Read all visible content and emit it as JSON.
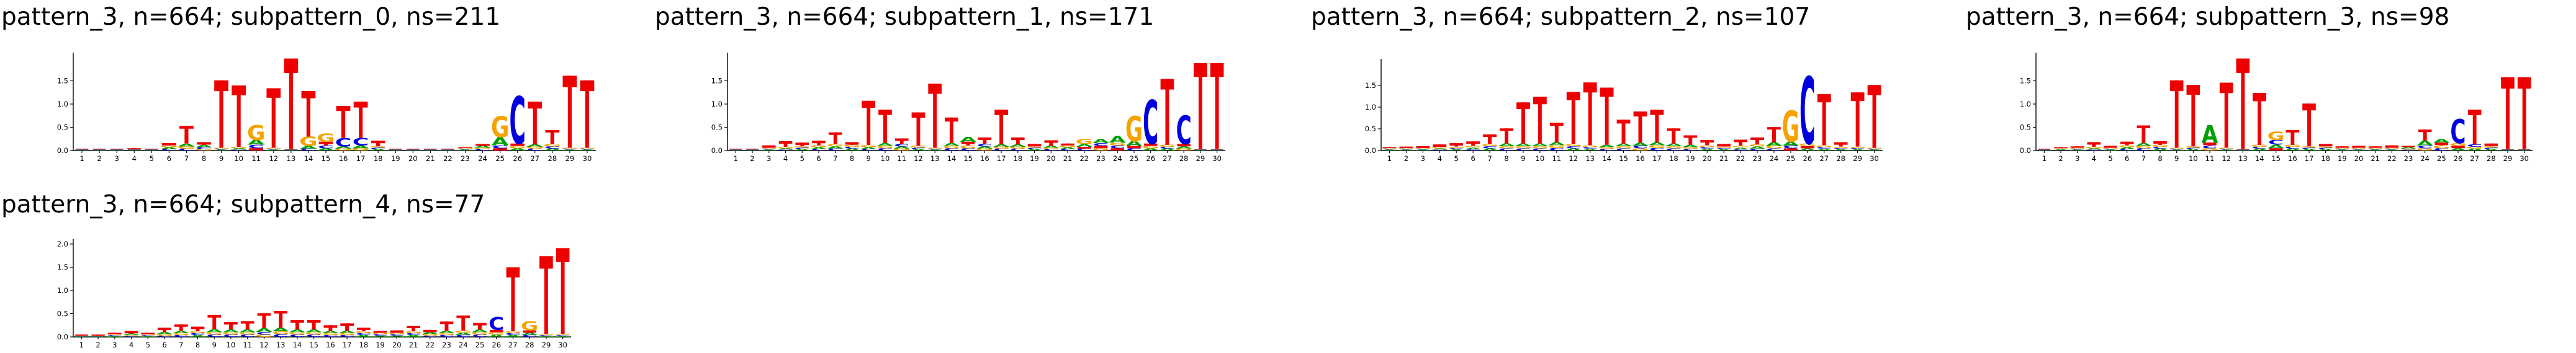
{
  "figure": {
    "background": "#ffffff"
  },
  "letter_colors": {
    "A": "#00a000",
    "C": "#0000dd",
    "G": "#f5a300",
    "T": "#ee0000"
  },
  "chart_data": [
    {
      "type": "logo",
      "title": "pattern_3, n=664; subpattern_0, ns=211",
      "xlabel": "",
      "ylabel": "",
      "ylim": [
        0,
        2.0
      ],
      "yticks": [
        "0.0",
        "0.5",
        "1.0",
        "1.5"
      ],
      "positions": [
        "1",
        "2",
        "3",
        "4",
        "5",
        "6",
        "7",
        "8",
        "9",
        "10",
        "11",
        "12",
        "13",
        "14",
        "15",
        "16",
        "17",
        "18",
        "19",
        "20",
        "21",
        "22",
        "23",
        "24",
        "25",
        "26",
        "27",
        "28",
        "29",
        "30"
      ],
      "letters": [
        {
          "A": 0.01,
          "C": 0.01,
          "G": 0.01,
          "T": 0.01
        },
        {
          "A": 0.01,
          "C": 0.01,
          "G": 0.01,
          "T": 0.01
        },
        {
          "A": 0.01,
          "C": 0.01,
          "G": 0.01,
          "T": 0.01
        },
        {
          "A": 0.01,
          "C": 0.01,
          "G": 0.01,
          "T": 0.02
        },
        {
          "A": 0.01,
          "C": 0.01,
          "G": 0.01,
          "T": 0.01
        },
        {
          "A": 0.04,
          "C": 0.03,
          "G": 0.04,
          "T": 0.05
        },
        {
          "A": 0.06,
          "C": 0.04,
          "G": 0.05,
          "T": 0.38
        },
        {
          "A": 0.05,
          "C": 0.04,
          "G": 0.03,
          "T": 0.06
        },
        {
          "A": 0.02,
          "C": 0.02,
          "G": 0.02,
          "T": 1.45
        },
        {
          "A": 0.03,
          "C": 0.02,
          "G": 0.03,
          "T": 1.32
        },
        {
          "A": 0.1,
          "C": 0.08,
          "G": 0.32,
          "T": 0.05
        },
        {
          "A": 0.02,
          "C": 0.02,
          "G": 0.02,
          "T": 1.28
        },
        {
          "A": 0.01,
          "C": 0.01,
          "G": 0.01,
          "T": 1.95
        },
        {
          "A": 0.06,
          "C": 0.04,
          "G": 0.2,
          "T": 0.98
        },
        {
          "A": 0.05,
          "C": 0.06,
          "G": 0.18,
          "T": 0.08
        },
        {
          "A": 0.05,
          "C": 0.18,
          "G": 0.04,
          "T": 0.69
        },
        {
          "A": 0.06,
          "C": 0.16,
          "G": 0.05,
          "T": 0.78
        },
        {
          "A": 0.03,
          "C": 0.03,
          "G": 0.03,
          "T": 0.12
        },
        {
          "A": 0.01,
          "C": 0.01,
          "G": 0.01,
          "T": 0.01
        },
        {
          "A": 0.01,
          "C": 0.01,
          "G": 0.01,
          "T": 0.01
        },
        {
          "A": 0.01,
          "C": 0.01,
          "G": 0.01,
          "T": 0.01
        },
        {
          "A": 0.01,
          "C": 0.01,
          "G": 0.01,
          "T": 0.01
        },
        {
          "A": 0.02,
          "C": 0.02,
          "G": 0.02,
          "T": 0.02
        },
        {
          "A": 0.04,
          "C": 0.03,
          "G": 0.03,
          "T": 0.04
        },
        {
          "A": 0.18,
          "C": 0.06,
          "G": 0.45,
          "T": 0.05
        },
        {
          "A": 0.05,
          "C": 1.02,
          "G": 0.05,
          "T": 0.05
        },
        {
          "A": 0.05,
          "C": 0.04,
          "G": 0.04,
          "T": 0.92
        },
        {
          "A": 0.04,
          "C": 0.05,
          "G": 0.05,
          "T": 0.3
        },
        {
          "A": 0.02,
          "C": 0.02,
          "G": 0.02,
          "T": 1.55
        },
        {
          "A": 0.02,
          "C": 0.02,
          "G": 0.02,
          "T": 1.45
        }
      ]
    },
    {
      "type": "logo",
      "title": "pattern_3, n=664; subpattern_1, ns=171",
      "xlabel": "",
      "ylabel": "",
      "ylim": [
        0,
        2.0
      ],
      "yticks": [
        "0.0",
        "0.5",
        "1.0",
        "1.5"
      ],
      "positions": [
        "1",
        "2",
        "3",
        "4",
        "5",
        "6",
        "7",
        "8",
        "9",
        "10",
        "11",
        "12",
        "13",
        "14",
        "15",
        "16",
        "17",
        "18",
        "19",
        "20",
        "21",
        "22",
        "23",
        "24",
        "25",
        "26",
        "27",
        "28",
        "29",
        "30"
      ],
      "letters": [
        {
          "A": 0.01,
          "C": 0.01,
          "G": 0.01,
          "T": 0.01
        },
        {
          "A": 0.01,
          "C": 0.01,
          "G": 0.01,
          "T": 0.01
        },
        {
          "A": 0.02,
          "C": 0.02,
          "G": 0.02,
          "T": 0.05
        },
        {
          "A": 0.03,
          "C": 0.02,
          "G": 0.03,
          "T": 0.12
        },
        {
          "A": 0.03,
          "C": 0.03,
          "G": 0.03,
          "T": 0.08
        },
        {
          "A": 0.04,
          "C": 0.03,
          "G": 0.04,
          "T": 0.1
        },
        {
          "A": 0.05,
          "C": 0.04,
          "G": 0.05,
          "T": 0.25
        },
        {
          "A": 0.04,
          "C": 0.04,
          "G": 0.04,
          "T": 0.06
        },
        {
          "A": 0.04,
          "C": 0.03,
          "G": 0.05,
          "T": 0.95
        },
        {
          "A": 0.06,
          "C": 0.05,
          "G": 0.05,
          "T": 0.72
        },
        {
          "A": 0.05,
          "C": 0.05,
          "G": 0.04,
          "T": 0.12
        },
        {
          "A": 0.03,
          "C": 0.03,
          "G": 0.04,
          "T": 0.72
        },
        {
          "A": 0.02,
          "C": 0.02,
          "G": 0.02,
          "T": 1.38
        },
        {
          "A": 0.06,
          "C": 0.05,
          "G": 0.05,
          "T": 0.55
        },
        {
          "A": 0.1,
          "C": 0.05,
          "G": 0.06,
          "T": 0.08
        },
        {
          "A": 0.05,
          "C": 0.05,
          "G": 0.04,
          "T": 0.14
        },
        {
          "A": 0.05,
          "C": 0.04,
          "G": 0.04,
          "T": 0.75
        },
        {
          "A": 0.05,
          "C": 0.04,
          "G": 0.04,
          "T": 0.15
        },
        {
          "A": 0.03,
          "C": 0.03,
          "G": 0.03,
          "T": 0.05
        },
        {
          "A": 0.04,
          "C": 0.03,
          "G": 0.03,
          "T": 0.12
        },
        {
          "A": 0.04,
          "C": 0.03,
          "G": 0.04,
          "T": 0.04
        },
        {
          "A": 0.06,
          "C": 0.04,
          "G": 0.1,
          "T": 0.04
        },
        {
          "A": 0.09,
          "C": 0.06,
          "G": 0.05,
          "T": 0.05
        },
        {
          "A": 0.15,
          "C": 0.06,
          "G": 0.06,
          "T": 0.05
        },
        {
          "A": 0.1,
          "C": 0.05,
          "G": 0.55,
          "T": 0.05
        },
        {
          "A": 0.05,
          "C": 0.95,
          "G": 0.05,
          "T": 0.05
        },
        {
          "A": 0.04,
          "C": 0.04,
          "G": 0.04,
          "T": 1.42
        },
        {
          "A": 0.05,
          "C": 0.62,
          "G": 0.04,
          "T": 0.05
        },
        {
          "A": 0.01,
          "C": 0.01,
          "G": 0.01,
          "T": 1.85
        },
        {
          "A": 0.01,
          "C": 0.01,
          "G": 0.01,
          "T": 1.85
        }
      ]
    },
    {
      "type": "logo",
      "title": "pattern_3, n=664; subpattern_2, ns=107",
      "xlabel": "",
      "ylabel": "",
      "ylim": [
        0,
        2.0
      ],
      "yticks": [
        "0.0",
        "0.5",
        "1.0",
        "1.5"
      ],
      "positions": [
        "1",
        "2",
        "3",
        "4",
        "5",
        "6",
        "7",
        "8",
        "9",
        "10",
        "11",
        "12",
        "13",
        "14",
        "15",
        "16",
        "17",
        "18",
        "19",
        "20",
        "21",
        "22",
        "23",
        "24",
        "25",
        "26",
        "27",
        "28",
        "29",
        "30"
      ],
      "letters": [
        {
          "A": 0.02,
          "C": 0.02,
          "G": 0.02,
          "T": 0.02
        },
        {
          "A": 0.02,
          "C": 0.02,
          "G": 0.02,
          "T": 0.03
        },
        {
          "A": 0.02,
          "C": 0.02,
          "G": 0.02,
          "T": 0.04
        },
        {
          "A": 0.03,
          "C": 0.02,
          "G": 0.03,
          "T": 0.06
        },
        {
          "A": 0.03,
          "C": 0.03,
          "G": 0.03,
          "T": 0.08
        },
        {
          "A": 0.04,
          "C": 0.03,
          "G": 0.04,
          "T": 0.1
        },
        {
          "A": 0.05,
          "C": 0.05,
          "G": 0.05,
          "T": 0.22
        },
        {
          "A": 0.06,
          "C": 0.05,
          "G": 0.05,
          "T": 0.35
        },
        {
          "A": 0.06,
          "C": 0.05,
          "G": 0.05,
          "T": 0.95
        },
        {
          "A": 0.06,
          "C": 0.05,
          "G": 0.05,
          "T": 1.08
        },
        {
          "A": 0.07,
          "C": 0.06,
          "G": 0.06,
          "T": 0.45
        },
        {
          "A": 0.05,
          "C": 0.05,
          "G": 0.05,
          "T": 1.2
        },
        {
          "A": 0.04,
          "C": 0.04,
          "G": 0.04,
          "T": 1.45
        },
        {
          "A": 0.05,
          "C": 0.04,
          "G": 0.04,
          "T": 1.32
        },
        {
          "A": 0.06,
          "C": 0.05,
          "G": 0.05,
          "T": 0.55
        },
        {
          "A": 0.07,
          "C": 0.06,
          "G": 0.05,
          "T": 0.72
        },
        {
          "A": 0.07,
          "C": 0.06,
          "G": 0.06,
          "T": 0.75
        },
        {
          "A": 0.06,
          "C": 0.05,
          "G": 0.05,
          "T": 0.35
        },
        {
          "A": 0.05,
          "C": 0.04,
          "G": 0.04,
          "T": 0.22
        },
        {
          "A": 0.04,
          "C": 0.04,
          "G": 0.04,
          "T": 0.12
        },
        {
          "A": 0.03,
          "C": 0.03,
          "G": 0.03,
          "T": 0.06
        },
        {
          "A": 0.04,
          "C": 0.03,
          "G": 0.04,
          "T": 0.14
        },
        {
          "A": 0.05,
          "C": 0.04,
          "G": 0.05,
          "T": 0.16
        },
        {
          "A": 0.08,
          "C": 0.05,
          "G": 0.06,
          "T": 0.35
        },
        {
          "A": 0.1,
          "C": 0.06,
          "G": 0.72,
          "T": 0.05
        },
        {
          "A": 0.05,
          "C": 1.55,
          "G": 0.06,
          "T": 0.05
        },
        {
          "A": 0.04,
          "C": 0.04,
          "G": 0.04,
          "T": 1.18
        },
        {
          "A": 0.03,
          "C": 0.03,
          "G": 0.03,
          "T": 0.1
        },
        {
          "A": 0.03,
          "C": 0.03,
          "G": 0.03,
          "T": 1.25
        },
        {
          "A": 0.02,
          "C": 0.02,
          "G": 0.02,
          "T": 1.45
        }
      ]
    },
    {
      "type": "logo",
      "title": "pattern_3, n=664; subpattern_3, ns=98",
      "xlabel": "",
      "ylabel": "",
      "ylim": [
        0,
        2.0
      ],
      "yticks": [
        "0.0",
        "0.5",
        "1.0",
        "1.5"
      ],
      "positions": [
        "1",
        "2",
        "3",
        "4",
        "5",
        "6",
        "7",
        "8",
        "9",
        "10",
        "11",
        "12",
        "13",
        "14",
        "15",
        "16",
        "17",
        "18",
        "19",
        "20",
        "21",
        "22",
        "23",
        "24",
        "25",
        "26",
        "27",
        "28",
        "29",
        "30"
      ],
      "letters": [
        {
          "A": 0.01,
          "C": 0.01,
          "G": 0.01,
          "T": 0.01
        },
        {
          "A": 0.02,
          "C": 0.01,
          "G": 0.02,
          "T": 0.02
        },
        {
          "A": 0.02,
          "C": 0.02,
          "G": 0.02,
          "T": 0.03
        },
        {
          "A": 0.03,
          "C": 0.02,
          "G": 0.03,
          "T": 0.1
        },
        {
          "A": 0.02,
          "C": 0.02,
          "G": 0.02,
          "T": 0.04
        },
        {
          "A": 0.04,
          "C": 0.03,
          "G": 0.04,
          "T": 0.08
        },
        {
          "A": 0.06,
          "C": 0.05,
          "G": 0.05,
          "T": 0.38
        },
        {
          "A": 0.04,
          "C": 0.04,
          "G": 0.04,
          "T": 0.08
        },
        {
          "A": 0.02,
          "C": 0.02,
          "G": 0.02,
          "T": 1.45
        },
        {
          "A": 0.03,
          "C": 0.03,
          "G": 0.03,
          "T": 1.32
        },
        {
          "A": 0.38,
          "C": 0.06,
          "G": 0.05,
          "T": 0.06
        },
        {
          "A": 0.02,
          "C": 0.02,
          "G": 0.02,
          "T": 1.4
        },
        {
          "A": 0.01,
          "C": 0.01,
          "G": 0.01,
          "T": 1.95
        },
        {
          "A": 0.04,
          "C": 0.04,
          "G": 0.04,
          "T": 1.12
        },
        {
          "A": 0.08,
          "C": 0.1,
          "G": 0.18,
          "T": 0.05
        },
        {
          "A": 0.04,
          "C": 0.04,
          "G": 0.04,
          "T": 0.32
        },
        {
          "A": 0.03,
          "C": 0.03,
          "G": 0.03,
          "T": 0.92
        },
        {
          "A": 0.03,
          "C": 0.03,
          "G": 0.03,
          "T": 0.05
        },
        {
          "A": 0.02,
          "C": 0.02,
          "G": 0.02,
          "T": 0.03
        },
        {
          "A": 0.02,
          "C": 0.02,
          "G": 0.02,
          "T": 0.04
        },
        {
          "A": 0.02,
          "C": 0.02,
          "G": 0.02,
          "T": 0.03
        },
        {
          "A": 0.02,
          "C": 0.02,
          "G": 0.02,
          "T": 0.05
        },
        {
          "A": 0.03,
          "C": 0.02,
          "G": 0.02,
          "T": 0.03
        },
        {
          "A": 0.1,
          "C": 0.06,
          "G": 0.05,
          "T": 0.24
        },
        {
          "A": 0.08,
          "C": 0.05,
          "G": 0.06,
          "T": 0.06
        },
        {
          "A": 0.05,
          "C": 0.52,
          "G": 0.06,
          "T": 0.05
        },
        {
          "A": 0.04,
          "C": 0.05,
          "G": 0.04,
          "T": 0.75
        },
        {
          "A": 0.03,
          "C": 0.03,
          "G": 0.03,
          "T": 0.06
        },
        {
          "A": 0.01,
          "C": 0.01,
          "G": 0.01,
          "T": 1.55
        },
        {
          "A": 0.01,
          "C": 0.01,
          "G": 0.01,
          "T": 1.55
        }
      ]
    },
    {
      "type": "logo",
      "title": "pattern_3, n=664; subpattern_4, ns=77",
      "xlabel": "",
      "ylabel": "",
      "ylim": [
        0,
        2.0
      ],
      "yticks": [
        "0.0",
        "0.5",
        "1.0",
        "1.5",
        "2.0"
      ],
      "positions": [
        "1",
        "2",
        "3",
        "4",
        "5",
        "6",
        "7",
        "8",
        "9",
        "10",
        "11",
        "12",
        "13",
        "14",
        "15",
        "16",
        "17",
        "18",
        "19",
        "20",
        "21",
        "22",
        "23",
        "24",
        "25",
        "26",
        "27",
        "28",
        "29",
        "30"
      ],
      "letters": [
        {
          "A": 0.01,
          "C": 0.01,
          "G": 0.01,
          "T": 0.02
        },
        {
          "A": 0.01,
          "C": 0.01,
          "G": 0.01,
          "T": 0.02
        },
        {
          "A": 0.02,
          "C": 0.02,
          "G": 0.02,
          "T": 0.03
        },
        {
          "A": 0.03,
          "C": 0.02,
          "G": 0.02,
          "T": 0.06
        },
        {
          "A": 0.02,
          "C": 0.02,
          "G": 0.02,
          "T": 0.03
        },
        {
          "A": 0.04,
          "C": 0.03,
          "G": 0.03,
          "T": 0.1
        },
        {
          "A": 0.05,
          "C": 0.04,
          "G": 0.04,
          "T": 0.14
        },
        {
          "A": 0.04,
          "C": 0.04,
          "G": 0.04,
          "T": 0.1
        },
        {
          "A": 0.07,
          "C": 0.05,
          "G": 0.05,
          "T": 0.3
        },
        {
          "A": 0.06,
          "C": 0.05,
          "G": 0.05,
          "T": 0.16
        },
        {
          "A": 0.06,
          "C": 0.05,
          "G": 0.05,
          "T": 0.18
        },
        {
          "A": 0.08,
          "C": 0.06,
          "G": 0.05,
          "T": 0.32
        },
        {
          "A": 0.08,
          "C": 0.06,
          "G": 0.06,
          "T": 0.36
        },
        {
          "A": 0.06,
          "C": 0.05,
          "G": 0.05,
          "T": 0.2
        },
        {
          "A": 0.06,
          "C": 0.05,
          "G": 0.05,
          "T": 0.2
        },
        {
          "A": 0.05,
          "C": 0.04,
          "G": 0.04,
          "T": 0.12
        },
        {
          "A": 0.05,
          "C": 0.04,
          "G": 0.04,
          "T": 0.16
        },
        {
          "A": 0.04,
          "C": 0.04,
          "G": 0.04,
          "T": 0.08
        },
        {
          "A": 0.03,
          "C": 0.03,
          "G": 0.03,
          "T": 0.04
        },
        {
          "A": 0.03,
          "C": 0.03,
          "G": 0.03,
          "T": 0.05
        },
        {
          "A": 0.04,
          "C": 0.04,
          "G": 0.04,
          "T": 0.12
        },
        {
          "A": 0.04,
          "C": 0.03,
          "G": 0.03,
          "T": 0.05
        },
        {
          "A": 0.05,
          "C": 0.04,
          "G": 0.04,
          "T": 0.2
        },
        {
          "A": 0.05,
          "C": 0.04,
          "G": 0.05,
          "T": 0.32
        },
        {
          "A": 0.06,
          "C": 0.05,
          "G": 0.05,
          "T": 0.14
        },
        {
          "A": 0.05,
          "C": 0.28,
          "G": 0.05,
          "T": 0.05
        },
        {
          "A": 0.04,
          "C": 0.04,
          "G": 0.04,
          "T": 1.38
        },
        {
          "A": 0.05,
          "C": 0.04,
          "G": 0.2,
          "T": 0.05
        },
        {
          "A": 0.02,
          "C": 0.02,
          "G": 0.02,
          "T": 1.68
        },
        {
          "A": 0.02,
          "C": 0.02,
          "G": 0.02,
          "T": 1.85
        }
      ]
    }
  ]
}
